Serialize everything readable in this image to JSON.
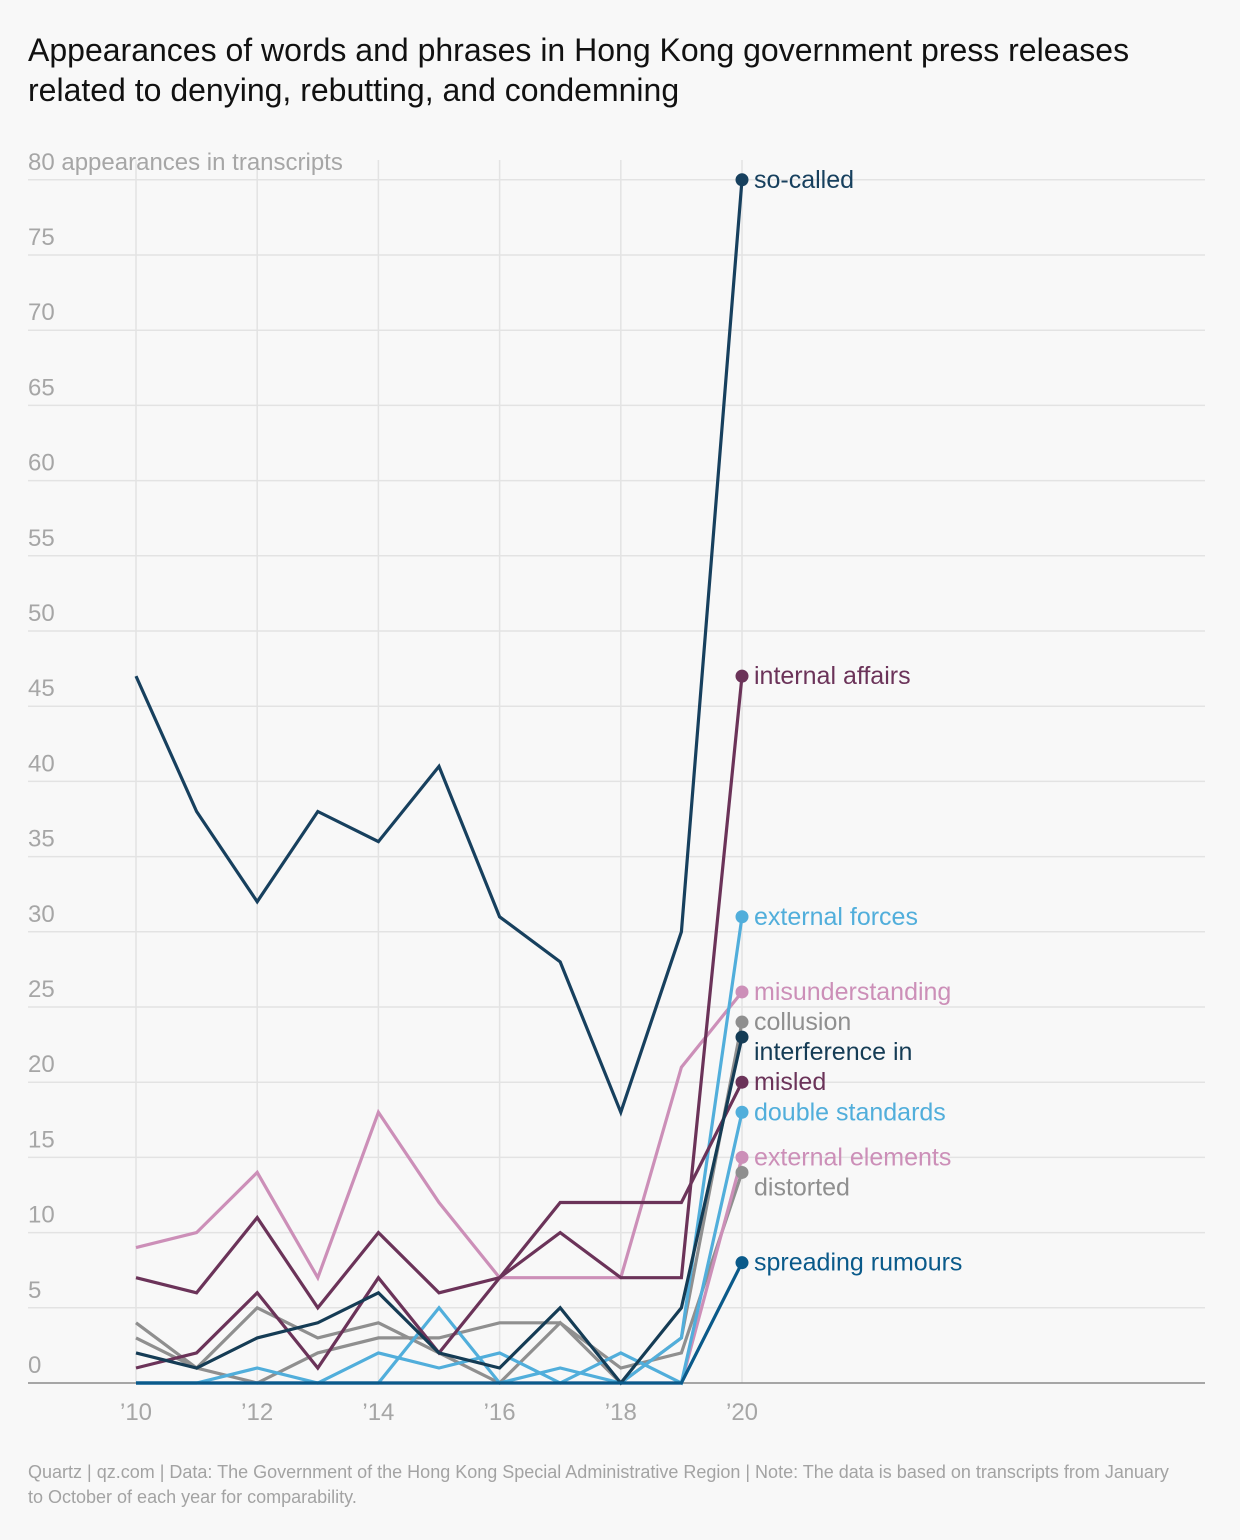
{
  "title": "Appearances of words and phrases in Hong Kong government press releases related to denying, rebutting, and condemning",
  "footer": "Quartz | qz.com | Data: The Government of the Hong Kong Special Administrative Region | Note: The data is based on transcripts from January to October of each year for comparability.",
  "chart_data": {
    "type": "line",
    "title": "Appearances of words and phrases in Hong Kong government press releases related to denying, rebutting, and condemning",
    "ylabel": "appearances in transcripts",
    "ylim": [
      0,
      80
    ],
    "yticks": [
      0,
      5,
      10,
      15,
      20,
      25,
      30,
      35,
      40,
      45,
      50,
      55,
      60,
      65,
      70,
      75,
      80
    ],
    "x": [
      2010,
      2011,
      2012,
      2013,
      2014,
      2015,
      2016,
      2017,
      2018,
      2019,
      2020
    ],
    "xticks": [
      2010,
      2012,
      2014,
      2016,
      2018,
      2020
    ],
    "xtick_labels": [
      "’10",
      "’12",
      "’14",
      "’16",
      "’18",
      "’20"
    ],
    "grid": true,
    "series": [
      {
        "name": "distorted",
        "color": "#8f8f8f",
        "values": [
          4,
          1,
          0,
          2,
          3,
          3,
          4,
          4,
          1,
          2,
          14
        ]
      },
      {
        "name": "collusion",
        "color": "#8f8f8f",
        "values": [
          3,
          1,
          5,
          3,
          4,
          2,
          0,
          4,
          0,
          3,
          24
        ]
      },
      {
        "name": "external elements",
        "color": "#cc8fb8",
        "values": [
          0,
          0,
          0,
          0,
          0,
          0,
          0,
          0,
          0,
          0,
          15
        ]
      },
      {
        "name": "misunderstanding",
        "color": "#cc8fb8",
        "values": [
          9,
          10,
          14,
          7,
          18,
          12,
          7,
          7,
          7,
          21,
          26
        ]
      },
      {
        "name": "double standards",
        "color": "#51aedb",
        "values": [
          0,
          0,
          1,
          0,
          2,
          1,
          2,
          0,
          2,
          0,
          18
        ]
      },
      {
        "name": "external forces",
        "color": "#51aedb",
        "values": [
          0,
          0,
          0,
          0,
          0,
          5,
          0,
          1,
          0,
          3,
          31
        ]
      },
      {
        "name": "misled",
        "color": "#6b3359",
        "values": [
          1,
          2,
          6,
          1,
          7,
          2,
          7,
          12,
          12,
          12,
          20
        ]
      },
      {
        "name": "internal affairs",
        "color": "#6b3359",
        "values": [
          7,
          6,
          11,
          5,
          10,
          6,
          7,
          10,
          7,
          7,
          47
        ]
      },
      {
        "name": "interference in",
        "color": "#153c55",
        "values": [
          2,
          1,
          3,
          4,
          6,
          2,
          1,
          5,
          0,
          5,
          23
        ]
      },
      {
        "name": "spreading rumours",
        "color": "#0a5a8a",
        "values": [
          0,
          0,
          0,
          0,
          0,
          0,
          0,
          0,
          0,
          0,
          8
        ]
      },
      {
        "name": "so-called",
        "color": "#17405e",
        "values": [
          47,
          38,
          32,
          38,
          36,
          41,
          31,
          28,
          18,
          30,
          80
        ]
      }
    ]
  }
}
